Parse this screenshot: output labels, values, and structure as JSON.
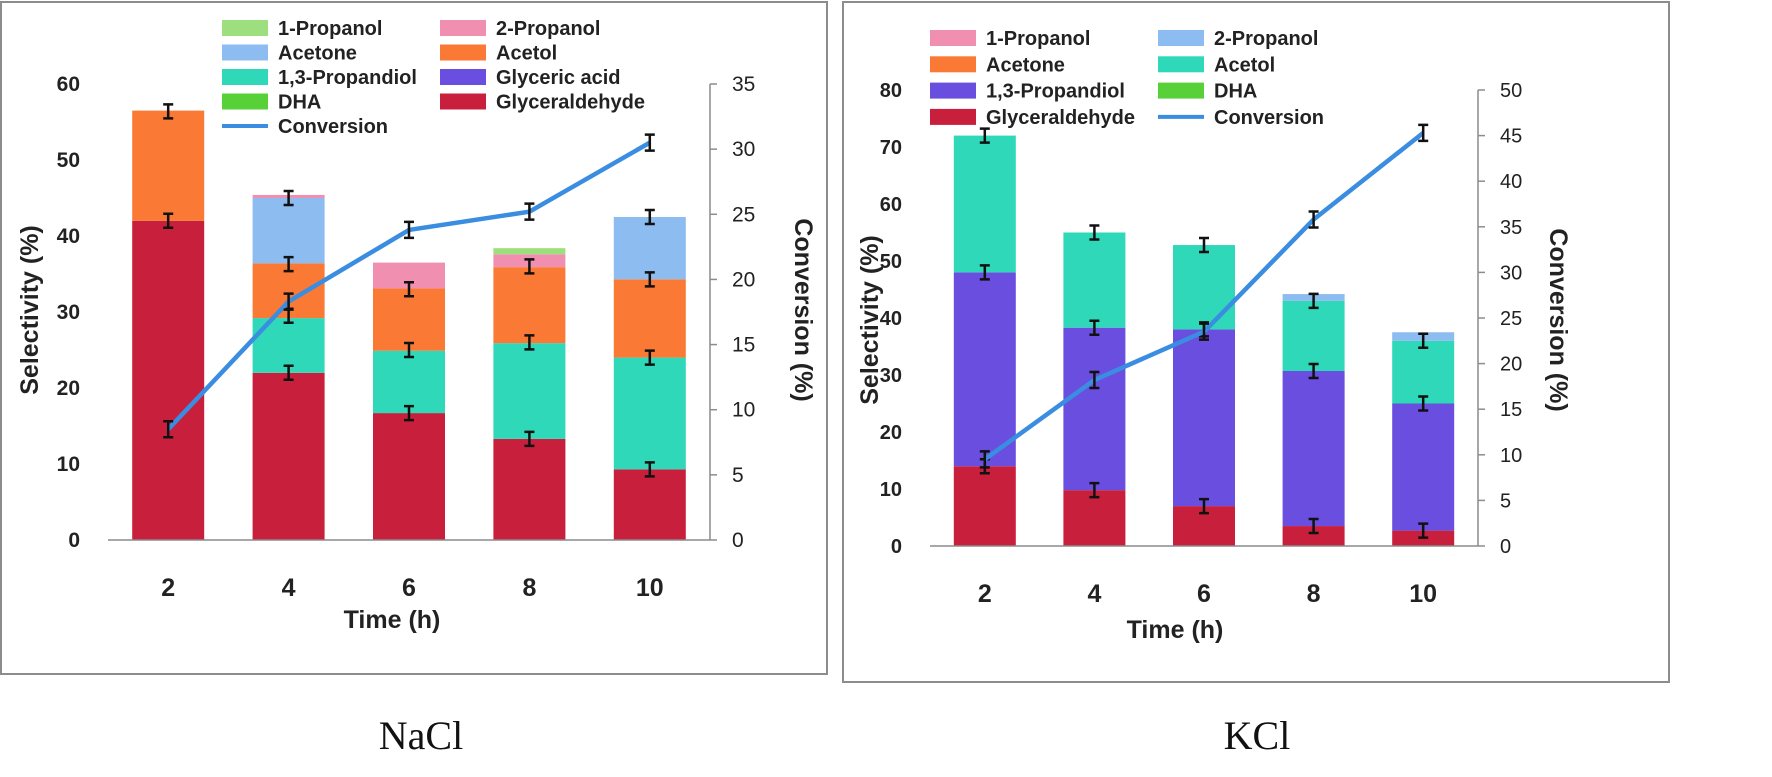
{
  "chart_data": [
    {
      "type": "bar",
      "caption": "NaCl",
      "xlabel": "Time (h)",
      "ylabel": "Selectivity (%)",
      "y2label": "Conversion (%)",
      "categories": [
        "2",
        "4",
        "6",
        "8",
        "10"
      ],
      "ylim": [
        0,
        60
      ],
      "yticks": [
        "0",
        "10",
        "20",
        "30",
        "40",
        "50",
        "60"
      ],
      "y2lim": [
        0,
        35
      ],
      "y2ticks": [
        "0",
        "5",
        "10",
        "15",
        "20",
        "25",
        "30",
        "35"
      ],
      "legend": [
        "1-Propanol",
        "2-Propanol",
        "Acetone",
        "Acetol",
        "1,3-Propandiol",
        "Glyceric acid",
        "DHA",
        "Glyceraldehyde",
        "Conversion"
      ],
      "stack_order": [
        "Glyceraldehyde",
        "DHA",
        "Glyceric acid",
        "1,3-Propandiol",
        "Acetol",
        "Acetone",
        "2-Propanol",
        "1-Propanol"
      ],
      "series": [
        {
          "name": "1-Propanol",
          "color": "#9ddf7e",
          "values": [
            0,
            0,
            0,
            0.8,
            0
          ]
        },
        {
          "name": "2-Propanol",
          "color": "#f08fb0",
          "values": [
            0,
            0.4,
            3.4,
            1.7,
            0
          ]
        },
        {
          "name": "Acetone",
          "color": "#8cbcf0",
          "values": [
            0,
            8.6,
            0,
            0,
            8.2
          ]
        },
        {
          "name": "Acetol",
          "color": "#fa7a35",
          "values": [
            14.5,
            7.2,
            8.2,
            10,
            10.3
          ]
        },
        {
          "name": "1,3-Propandiol",
          "color": "#2fd8b8",
          "values": [
            0,
            7.2,
            8.2,
            12.6,
            14.7
          ]
        },
        {
          "name": "Glyceric acid",
          "color": "#6a4ee0",
          "values": [
            0,
            0,
            0,
            0,
            0
          ]
        },
        {
          "name": "DHA",
          "color": "#58d038",
          "values": [
            0,
            0,
            0,
            0,
            0
          ]
        },
        {
          "name": "Glyceraldehyde",
          "color": "#c8203c",
          "values": [
            42,
            22,
            16.7,
            13.3,
            9.3
          ]
        }
      ],
      "error_points": [
        {
          "cat": 0,
          "y": 42
        },
        {
          "cat": 0,
          "y": 56.4
        },
        {
          "cat": 1,
          "y": 22
        },
        {
          "cat": 1,
          "y": 29.5
        },
        {
          "cat": 1,
          "y": 36.3
        },
        {
          "cat": 1,
          "y": 45
        },
        {
          "cat": 2,
          "y": 16.7
        },
        {
          "cat": 2,
          "y": 25
        },
        {
          "cat": 2,
          "y": 33
        },
        {
          "cat": 3,
          "y": 13.3
        },
        {
          "cat": 3,
          "y": 26
        },
        {
          "cat": 3,
          "y": 36
        },
        {
          "cat": 4,
          "y": 9.3
        },
        {
          "cat": 4,
          "y": 24
        },
        {
          "cat": 4,
          "y": 34.3
        },
        {
          "cat": 4,
          "y": 42.5
        }
      ],
      "line": {
        "name": "Conversion",
        "color": "#3a8de0",
        "values": [
          8.5,
          18.3,
          23.8,
          25.2,
          30.5
        ]
      }
    },
    {
      "type": "bar",
      "caption": "KCl",
      "xlabel": "Time (h)",
      "ylabel": "Selectivity (%)",
      "y2label": "Conversion (%)",
      "categories": [
        "2",
        "4",
        "6",
        "8",
        "10"
      ],
      "ylim": [
        0,
        80
      ],
      "yticks": [
        "0",
        "10",
        "20",
        "30",
        "40",
        "50",
        "60",
        "70",
        "80"
      ],
      "y2lim": [
        0,
        50
      ],
      "y2ticks": [
        "0",
        "5",
        "10",
        "15",
        "20",
        "25",
        "30",
        "35",
        "40",
        "45",
        "50"
      ],
      "legend": [
        "1-Propanol",
        "2-Propanol",
        "Acetone",
        "Acetol",
        "1,3-Propandiol",
        "DHA",
        "Glyceraldehyde",
        "Conversion"
      ],
      "stack_order": [
        "Glyceraldehyde",
        "DHA",
        "1,3-Propandiol",
        "Acetol",
        "Acetone",
        "2-Propanol",
        "1-Propanol"
      ],
      "series": [
        {
          "name": "1-Propanol",
          "color": "#f08fb0",
          "values": [
            0,
            0,
            0,
            0,
            0
          ]
        },
        {
          "name": "2-Propanol",
          "color": "#8cbcf0",
          "values": [
            0,
            0,
            0,
            1.2,
            1.5
          ]
        },
        {
          "name": "Acetone",
          "color": "#fa7a35",
          "values": [
            0,
            0,
            0,
            0,
            0
          ]
        },
        {
          "name": "Acetol",
          "color": "#2fd8b8",
          "values": [
            24,
            16.7,
            14.8,
            12.3,
            11
          ]
        },
        {
          "name": "1,3-Propandiol",
          "color": "#6a4ee0",
          "values": [
            34,
            28.5,
            31,
            27.2,
            22.3
          ]
        },
        {
          "name": "DHA",
          "color": "#58d038",
          "values": [
            0,
            0,
            0,
            0,
            0
          ]
        },
        {
          "name": "Glyceraldehyde",
          "color": "#c8203c",
          "values": [
            14,
            9.8,
            7,
            3.5,
            2.7
          ]
        }
      ],
      "error_points": [
        {
          "cat": 0,
          "y": 14
        },
        {
          "cat": 0,
          "y": 48
        },
        {
          "cat": 0,
          "y": 72
        },
        {
          "cat": 1,
          "y": 9.8
        },
        {
          "cat": 1,
          "y": 38.3
        },
        {
          "cat": 1,
          "y": 55
        },
        {
          "cat": 2,
          "y": 7
        },
        {
          "cat": 2,
          "y": 38
        },
        {
          "cat": 2,
          "y": 52.8
        },
        {
          "cat": 3,
          "y": 3.5
        },
        {
          "cat": 3,
          "y": 30.7
        },
        {
          "cat": 3,
          "y": 43
        },
        {
          "cat": 4,
          "y": 2.7
        },
        {
          "cat": 4,
          "y": 25
        },
        {
          "cat": 4,
          "y": 36
        }
      ],
      "line": {
        "name": "Conversion",
        "color": "#3a8de0",
        "values": [
          9.5,
          18.2,
          23.5,
          35.8,
          45.3
        ]
      }
    }
  ]
}
